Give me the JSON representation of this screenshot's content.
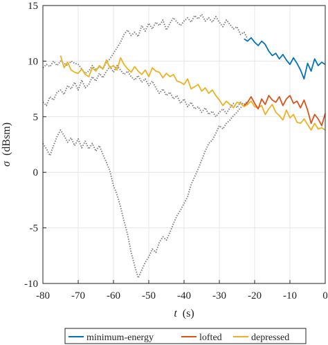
{
  "chart_data": {
    "type": "line",
    "xlabel_var": "t",
    "xlabel_unit": "(s)",
    "ylabel_var": "σ",
    "ylabel_unit": "(dBsm)",
    "xlim": [
      -80,
      0
    ],
    "ylim": [
      -10,
      15
    ],
    "xticks": [
      -80,
      -70,
      -60,
      -50,
      -40,
      -30,
      -20,
      -10,
      0
    ],
    "yticks": [
      -10,
      -5,
      0,
      5,
      10,
      15
    ],
    "grid": true,
    "legend": {
      "placement": "bottom",
      "orientation": "horizontal",
      "entries": [
        "minimum-energy",
        "lofted",
        "depressed"
      ]
    },
    "colors": {
      "minimum-energy": "#0072BD",
      "lofted": "#D95319",
      "depressed": "#EDB120",
      "dotted_traces": "#808080"
    },
    "series": [
      {
        "name": "minimum-energy",
        "style": "solid",
        "x": [
          -23,
          -22,
          -21,
          -20,
          -19,
          -18,
          -17,
          -16,
          -15,
          -14,
          -13,
          -12,
          -11,
          -10,
          -9,
          -8,
          -7,
          -6,
          -5,
          -4,
          -3,
          -2,
          -1,
          0
        ],
        "y": [
          12.0,
          11.8,
          12.1,
          11.7,
          11.4,
          11.8,
          11.5,
          10.9,
          10.5,
          10.7,
          10.2,
          10.6,
          10.1,
          9.7,
          10.3,
          9.8,
          9.2,
          8.4,
          9.8,
          9.1,
          10.2,
          9.6,
          9.9,
          9.7
        ]
      },
      {
        "name": "lofted",
        "style": "solid",
        "x": [
          -23,
          -22,
          -21,
          -20,
          -19,
          -18,
          -17,
          -16,
          -15,
          -14,
          -13,
          -12,
          -11,
          -10,
          -9,
          -8,
          -7,
          -6,
          -5,
          -4,
          -3,
          -2,
          -1,
          0
        ],
        "y": [
          6.0,
          6.3,
          6.8,
          6.2,
          5.7,
          6.6,
          6.1,
          6.9,
          6.5,
          6.3,
          6.8,
          6.0,
          6.6,
          6.9,
          6.2,
          6.4,
          5.8,
          6.5,
          5.6,
          4.4,
          5.2,
          4.8,
          4.2,
          5.3
        ]
      },
      {
        "name": "depressed",
        "style": "solid",
        "x": [
          -75,
          -74,
          -73,
          -72,
          -71,
          -70,
          -69,
          -68,
          -67,
          -66,
          -65,
          -64,
          -63,
          -62,
          -61,
          -60,
          -59,
          -58,
          -57,
          -56,
          -55,
          -54,
          -53,
          -52,
          -51,
          -50,
          -49,
          -48,
          -47,
          -46,
          -45,
          -44,
          -43,
          -42,
          -41,
          -40,
          -39,
          -38,
          -37,
          -36,
          -35,
          -34,
          -33,
          -32,
          -31,
          -30,
          -29,
          -28,
          -27,
          -26,
          -25,
          -24,
          -23,
          -22,
          -21,
          -20,
          -19,
          -18,
          -17,
          -16,
          -15,
          -14,
          -13,
          -12,
          -11,
          -10,
          -9,
          -8,
          -7,
          -6,
          -5,
          -4,
          -3,
          -2,
          -1,
          0
        ],
        "y": [
          10.5,
          9.4,
          9.9,
          9.2,
          9.0,
          8.9,
          9.3,
          8.8,
          8.6,
          9.4,
          9.1,
          9.6,
          9.3,
          10.1,
          9.4,
          9.6,
          9.2,
          10.3,
          9.7,
          9.3,
          9.0,
          9.5,
          9.1,
          8.8,
          9.2,
          8.6,
          9.4,
          9.1,
          9.0,
          8.5,
          8.9,
          8.6,
          8.8,
          8.2,
          8.1,
          7.9,
          8.4,
          7.5,
          7.7,
          7.9,
          7.3,
          7.6,
          7.1,
          7.4,
          6.9,
          6.5,
          6.0,
          6.4,
          6.1,
          5.8,
          6.3,
          6.2,
          5.9,
          6.1,
          6.4,
          5.9,
          5.8,
          6.0,
          5.2,
          5.7,
          6.1,
          5.4,
          5.1,
          4.7,
          5.6,
          4.9,
          5.2,
          4.5,
          4.4,
          4.8,
          4.3,
          3.8,
          4.4,
          3.9,
          4.0,
          3.8
        ]
      },
      {
        "style": "dotted",
        "x": [
          -80,
          -79,
          -78,
          -77,
          -76,
          -75,
          -74,
          -73,
          -72,
          -71,
          -70,
          -69,
          -68,
          -67,
          -66,
          -65,
          -64,
          -63,
          -62,
          -61,
          -60,
          -59,
          -58,
          -57,
          -56,
          -55,
          -54,
          -53,
          -52,
          -51,
          -50,
          -49,
          -48,
          -47,
          -46,
          -45,
          -44,
          -43,
          -42,
          -41,
          -40,
          -39,
          -38,
          -37,
          -36,
          -35,
          -34,
          -33,
          -32,
          -31,
          -30,
          -29,
          -28,
          -27,
          -26,
          -25,
          -24,
          -23,
          -22
        ],
        "y": [
          9.4,
          9.7,
          9.5,
          10.0,
          9.6,
          10.0,
          9.8,
          9.6,
          10.0,
          9.8,
          9.7,
          9.3,
          8.9,
          9.1,
          9.6,
          9.2,
          9.5,
          9.3,
          9.9,
          10.2,
          10.7,
          11.2,
          11.7,
          12.4,
          12.8,
          12.3,
          12.6,
          12.2,
          13.2,
          12.7,
          13.4,
          12.9,
          13.5,
          13.2,
          13.7,
          12.8,
          13.4,
          13.9,
          13.5,
          13.2,
          13.6,
          13.9,
          13.5,
          14.1,
          13.8,
          14.2,
          13.6,
          13.9,
          13.5,
          14.0,
          13.5,
          13.1,
          13.7,
          13.3,
          12.9,
          13.1,
          12.4,
          12.6,
          12.0
        ]
      },
      {
        "style": "dotted",
        "x": [
          -80,
          -79,
          -78,
          -77,
          -76,
          -75,
          -74,
          -73,
          -72,
          -71,
          -70,
          -69,
          -68,
          -67,
          -66,
          -65,
          -64,
          -63,
          -62,
          -61,
          -60,
          -59,
          -58,
          -57,
          -56,
          -55,
          -54,
          -53,
          -52,
          -51,
          -50,
          -49,
          -48,
          -47,
          -46,
          -45,
          -44,
          -43,
          -42,
          -41,
          -40,
          -39,
          -38,
          -37,
          -36,
          -35,
          -34,
          -33,
          -32,
          -31,
          -30,
          -29,
          -28,
          -27,
          -26,
          -25,
          -24,
          -23,
          -22
        ],
        "y": [
          6.3,
          6.0,
          6.8,
          6.5,
          7.2,
          7.4,
          7.0,
          7.8,
          7.5,
          8.1,
          7.4,
          8.3,
          7.6,
          7.9,
          8.6,
          8.2,
          8.9,
          8.5,
          9.1,
          9.5,
          9.0,
          9.6,
          9.2,
          8.8,
          9.1,
          8.6,
          8.3,
          8.7,
          8.1,
          8.4,
          7.8,
          8.2,
          7.6,
          7.1,
          7.5,
          6.9,
          7.2,
          6.6,
          6.9,
          6.2,
          6.6,
          5.9,
          6.3,
          5.7,
          5.9,
          5.4,
          5.8,
          5.2,
          5.5,
          5.0,
          5.4,
          5.7,
          5.3,
          5.8,
          6.2,
          5.8,
          6.3,
          6.1,
          6.4
        ]
      },
      {
        "style": "dotted",
        "x": [
          -80,
          -79,
          -78,
          -77,
          -76,
          -75,
          -74,
          -73,
          -72,
          -71,
          -70,
          -69,
          -68,
          -67,
          -66,
          -65,
          -64,
          -63,
          -62,
          -61,
          -60,
          -59,
          -58,
          -57,
          -56,
          -55,
          -54,
          -53,
          -52,
          -51,
          -50,
          -49,
          -48,
          -47,
          -46,
          -45,
          -44,
          -43,
          -42,
          -41,
          -40,
          -39,
          -38,
          -37,
          -36,
          -35,
          -34,
          -33,
          -32,
          -31,
          -30,
          -29,
          -28,
          -27,
          -26,
          -25,
          -24,
          -23,
          -22
        ],
        "y": [
          2.6,
          2.1,
          1.5,
          2.4,
          3.2,
          3.8,
          3.3,
          2.7,
          3.1,
          2.4,
          3.0,
          2.2,
          2.8,
          2.1,
          2.6,
          1.9,
          2.4,
          1.6,
          0.9,
          0.1,
          -1.2,
          -2.0,
          -3.1,
          -4.4,
          -5.6,
          -7.2,
          -8.4,
          -9.5,
          -8.8,
          -8.1,
          -7.6,
          -6.9,
          -7.2,
          -6.3,
          -5.8,
          -6.1,
          -5.4,
          -4.6,
          -3.9,
          -3.4,
          -2.8,
          -2.2,
          -1.1,
          -0.4,
          0.3,
          1.1,
          1.9,
          2.6,
          2.9,
          3.5,
          4.2,
          3.9,
          4.4,
          4.7,
          5.1,
          5.4,
          5.8,
          6.1,
          6.2
        ]
      }
    ]
  }
}
